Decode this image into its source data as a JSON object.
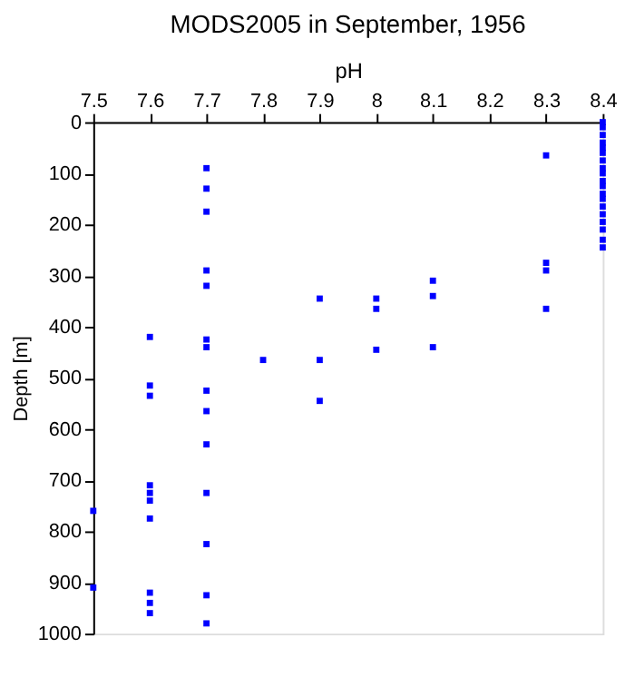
{
  "chart_data": {
    "type": "scatter",
    "title": "MODS2005 in September, 1956",
    "xlabel": "pH",
    "ylabel": "Depth [m]",
    "xlim": [
      7.5,
      8.4
    ],
    "xticks": [
      7.5,
      7.6,
      7.7,
      7.8,
      7.9,
      8,
      8.1,
      8.2,
      8.3,
      8.4
    ],
    "ylim": [
      1000,
      0
    ],
    "yticks": [
      0,
      100,
      200,
      300,
      400,
      500,
      600,
      700,
      800,
      900,
      1000
    ],
    "grid": false,
    "marker": "square",
    "series": [
      {
        "color": "#0000ff",
        "x": [
          7.5,
          7.5,
          7.6,
          7.6,
          7.6,
          7.6,
          7.6,
          7.6,
          7.6,
          7.6,
          7.6,
          7.6,
          7.7,
          7.7,
          7.7,
          7.7,
          7.7,
          7.7,
          7.7,
          7.7,
          7.7,
          7.7,
          7.7,
          7.7,
          7.7,
          7.7,
          7.8,
          7.9,
          7.9,
          7.9,
          8,
          8,
          8,
          8.1,
          8.1,
          8.1,
          8.3,
          8.3,
          8.3,
          8.3,
          8.4,
          8.4,
          8.4,
          8.4,
          8.4,
          8.4,
          8.4,
          8.4,
          8.4,
          8.4,
          8.4,
          8.4,
          8.4,
          8.4,
          8.4,
          8.4,
          8.4,
          8.4,
          8.4
        ],
        "values": [
          760,
          910,
          420,
          515,
          535,
          710,
          725,
          740,
          775,
          920,
          940,
          960,
          90,
          130,
          175,
          290,
          320,
          425,
          440,
          525,
          565,
          630,
          725,
          825,
          925,
          980,
          465,
          345,
          465,
          545,
          345,
          365,
          445,
          310,
          340,
          440,
          65,
          275,
          290,
          365,
          0,
          10,
          25,
          40,
          50,
          60,
          75,
          90,
          100,
          115,
          125,
          140,
          150,
          165,
          180,
          195,
          210,
          230,
          245
        ]
      }
    ]
  }
}
